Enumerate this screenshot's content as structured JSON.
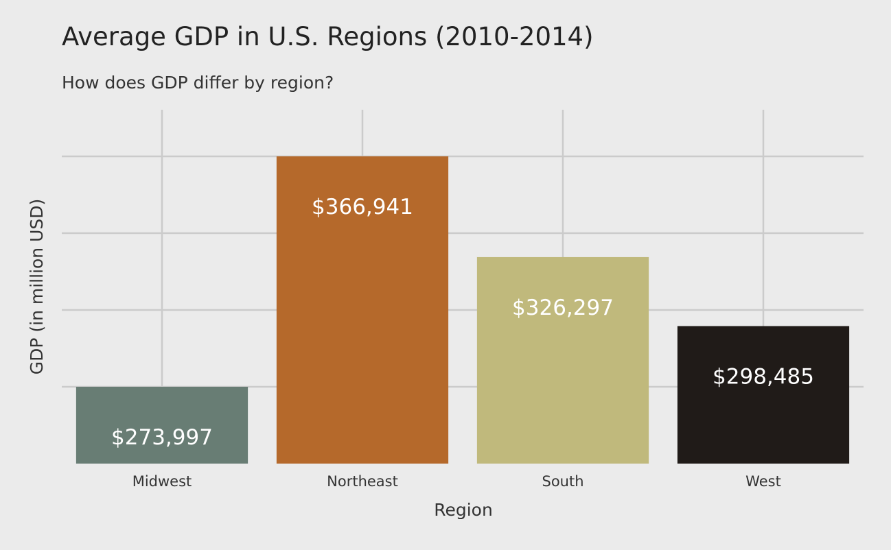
{
  "chart_data": {
    "type": "bar",
    "title": "Average GDP in U.S. Regions (2010-2014)",
    "subtitle": "How does GDP differ by region?",
    "xlabel": "Region",
    "ylabel": "GDP (in million USD)",
    "categories": [
      "Midwest",
      "Northeast",
      "South",
      "West"
    ],
    "values": [
      273997,
      366941,
      326297,
      298485
    ],
    "value_labels": [
      "$273,997",
      "$366,941",
      "$326,297",
      "$298,485"
    ],
    "colors": [
      "#687d74",
      "#b5692b",
      "#c0b97c",
      "#201b18"
    ],
    "ylim": [
      264000,
      376000
    ],
    "y_gridlines": [
      273997,
      366941,
      340000,
      320000,
      300000,
      280000
    ],
    "grid": true,
    "y_tick_labels_visible": false
  }
}
